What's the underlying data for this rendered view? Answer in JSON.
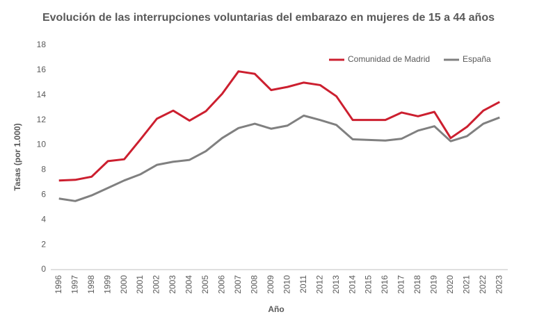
{
  "chart_data": {
    "type": "line",
    "title": "Evolución de las interrupciones voluntarias del embarazo en mujeres de 15 a 44 años",
    "x_label": "Año",
    "y_label": "Tasas (por 1.000)",
    "categories": [
      "1996",
      "1997",
      "1998",
      "1999",
      "2000",
      "2001",
      "2002",
      "2003",
      "2004",
      "2005",
      "2006",
      "2007",
      "2008",
      "2009",
      "2010",
      "2011",
      "2012",
      "2013",
      "2014",
      "2015",
      "2016",
      "2017",
      "2018",
      "2019",
      "2020",
      "2021",
      "2022",
      "2023"
    ],
    "series": [
      {
        "name": "Comunidad de Madrid",
        "color": "#cc1f2f",
        "values": [
          7.15,
          7.2,
          7.45,
          8.7,
          8.85,
          10.45,
          12.1,
          12.75,
          11.95,
          12.7,
          14.1,
          15.9,
          15.7,
          14.4,
          14.65,
          15.0,
          14.8,
          13.9,
          12.0,
          12.0,
          12.0,
          12.6,
          12.3,
          12.65,
          10.55,
          11.45,
          12.75,
          13.45
        ]
      },
      {
        "name": "España",
        "color": "#808080",
        "values": [
          5.7,
          5.5,
          5.95,
          6.55,
          7.15,
          7.65,
          8.4,
          8.65,
          8.8,
          9.5,
          10.55,
          11.35,
          11.7,
          11.3,
          11.55,
          12.35,
          12.0,
          11.6,
          10.45,
          10.4,
          10.35,
          10.5,
          11.15,
          11.5,
          10.3,
          10.7,
          11.7,
          12.2
        ]
      }
    ],
    "ylim": [
      0,
      18
    ],
    "yticks": [
      0,
      2,
      4,
      6,
      8,
      10,
      12,
      14,
      16,
      18
    ],
    "grid": false,
    "legend": "top-right"
  }
}
